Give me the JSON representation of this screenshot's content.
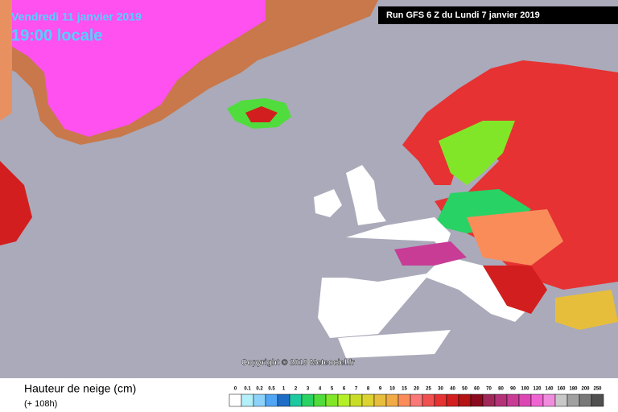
{
  "header": {
    "date": "Vendredi 11 janvier 2019",
    "time": "19:00 locale",
    "run": "Run GFS 6 Z du Lundi 7 janvier 2019"
  },
  "copyright": "Copyright © 2019 Meteociel.fr",
  "footer": {
    "title": "Hauteur de neige (cm)",
    "lead": "(+ 108h)"
  },
  "legend": {
    "items": [
      {
        "label": 0,
        "color": "#ffffff"
      },
      {
        "label": 0.1,
        "color": "#b4f0fa"
      },
      {
        "label": 0.2,
        "color": "#8cd2fa"
      },
      {
        "label": 0.5,
        "color": "#50a5f5"
      },
      {
        "label": 1,
        "color": "#1e6ec8"
      },
      {
        "label": 2,
        "color": "#1ec8a0"
      },
      {
        "label": 3,
        "color": "#28d264"
      },
      {
        "label": 4,
        "color": "#50dc3c"
      },
      {
        "label": 5,
        "color": "#82e628"
      },
      {
        "label": 6,
        "color": "#b4f028"
      },
      {
        "label": 7,
        "color": "#c8dc28"
      },
      {
        "label": 8,
        "color": "#dcd232"
      },
      {
        "label": 9,
        "color": "#e6be3c"
      },
      {
        "label": 10,
        "color": "#f0aa46"
      },
      {
        "label": 15,
        "color": "#fa8c5a"
      },
      {
        "label": 20,
        "color": "#fa7878"
      },
      {
        "label": 25,
        "color": "#f05050"
      },
      {
        "label": 30,
        "color": "#e63232"
      },
      {
        "label": 40,
        "color": "#d21e1e"
      },
      {
        "label": 50,
        "color": "#b41414"
      },
      {
        "label": 60,
        "color": "#8c0a1e"
      },
      {
        "label": 70,
        "color": "#a0285a"
      },
      {
        "label": 80,
        "color": "#b43278"
      },
      {
        "label": 90,
        "color": "#c83c96"
      },
      {
        "label": 100,
        "color": "#dc46b4"
      },
      {
        "label": 120,
        "color": "#f064d2"
      },
      {
        "label": 140,
        "color": "#f08cdc"
      },
      {
        "label": 160,
        "color": "#c8c8c8"
      },
      {
        "label": 180,
        "color": "#a0a0a0"
      },
      {
        "label": 200,
        "color": "#787878"
      },
      {
        "label": 250,
        "color": "#505050"
      }
    ]
  }
}
